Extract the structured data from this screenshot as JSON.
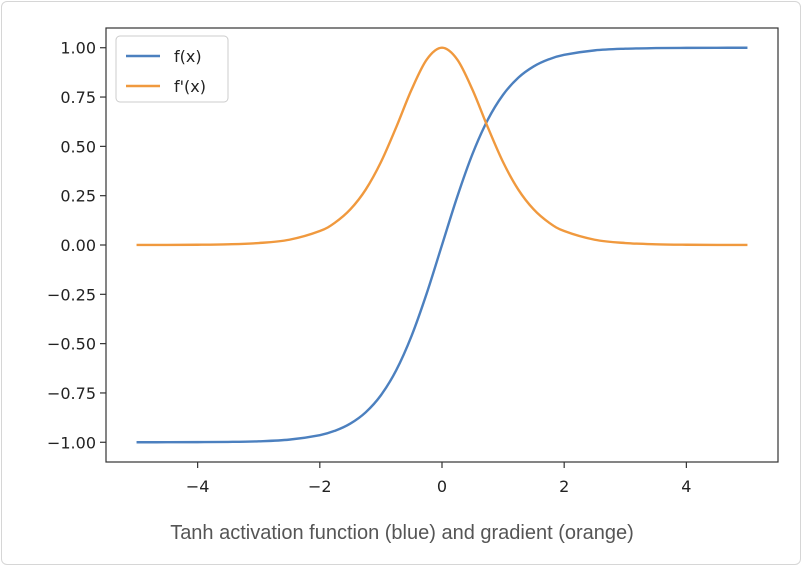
{
  "caption": "Tanh activation function (blue) and gradient (orange)",
  "chart_data": {
    "type": "line",
    "title": "",
    "xlabel": "",
    "ylabel": "",
    "xlim": [
      -5.5,
      5.5
    ],
    "ylim": [
      -1.1,
      1.1
    ],
    "xticks": [
      -4,
      -2,
      0,
      2,
      4
    ],
    "xtick_labels": [
      "−4",
      "−2",
      "0",
      "2",
      "4"
    ],
    "yticks": [
      1.0,
      0.75,
      0.5,
      0.25,
      0.0,
      -0.25,
      -0.5,
      -0.75,
      -1.0
    ],
    "ytick_labels": [
      "1.00",
      "0.75",
      "0.50",
      "0.25",
      "0.00",
      "−0.25",
      "−0.50",
      "−0.75",
      "−1.00"
    ],
    "grid": false,
    "legend_position": "top-left",
    "x": [
      -5,
      -4.5,
      -4,
      -3.5,
      -3,
      -2.5,
      -2,
      -1.75,
      -1.5,
      -1.25,
      -1,
      -0.75,
      -0.5,
      -0.25,
      0,
      0.25,
      0.5,
      0.75,
      1,
      1.25,
      1.5,
      1.75,
      2,
      2.5,
      3,
      3.5,
      4,
      4.5,
      5
    ],
    "series": [
      {
        "name": "f(x)",
        "color": "#4c80bf",
        "values": [
          -0.9999,
          -0.9998,
          -0.9993,
          -0.9982,
          -0.9951,
          -0.9866,
          -0.964,
          -0.9414,
          -0.9051,
          -0.8483,
          -0.7616,
          -0.6351,
          -0.4621,
          -0.2449,
          0.0,
          0.2449,
          0.4621,
          0.6351,
          0.7616,
          0.8483,
          0.9051,
          0.9414,
          0.964,
          0.9866,
          0.9951,
          0.9982,
          0.9993,
          0.9998,
          0.9999
        ]
      },
      {
        "name": "f'(x)",
        "color": "#f0993e",
        "values": [
          0.0002,
          0.0005,
          0.0013,
          0.0036,
          0.0099,
          0.0266,
          0.0707,
          0.1138,
          0.1807,
          0.2804,
          0.42,
          0.5966,
          0.7864,
          0.94,
          1.0,
          0.94,
          0.7864,
          0.5966,
          0.42,
          0.2804,
          0.1807,
          0.1138,
          0.0707,
          0.0266,
          0.0099,
          0.0036,
          0.0013,
          0.0005,
          0.0002
        ]
      }
    ]
  }
}
